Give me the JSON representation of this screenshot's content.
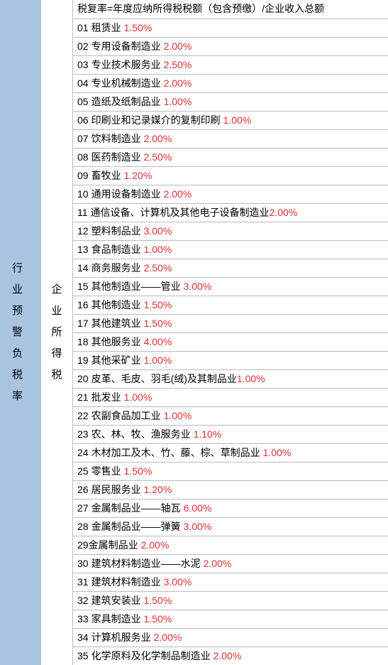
{
  "header_text": "税复率=年度应纳所得税税额（包含预缴）/企业收入总额",
  "sidebar_left": "行业预警负税率",
  "sidebar_middle": "企业所得税",
  "colors": {
    "left_bg": "#a8c4e0",
    "right_bg": "#ffffff",
    "border": "#bbbbbb",
    "text": "#000000",
    "rate": "#e03030"
  },
  "rows": [
    {
      "num": "01",
      "label": "租赁业",
      "rate": "1.50%",
      "space": true
    },
    {
      "num": "02",
      "label": "专用设备制造业",
      "rate": "2.00%",
      "space": true
    },
    {
      "num": "03",
      "label": "专业技术服务业",
      "rate": "2.50%",
      "space": true
    },
    {
      "num": "04",
      "label": "专业机械制造业",
      "rate": "2.00%",
      "space": true
    },
    {
      "num": "05",
      "label": "造纸及纸制品业",
      "rate": "1.00%",
      "space": true
    },
    {
      "num": "06",
      "label": "印刷业和记录媒介的复制印刷",
      "rate": "1.00%",
      "space": true
    },
    {
      "num": "07",
      "label": "饮料制造业",
      "rate": "2.00%",
      "space": true
    },
    {
      "num": "08",
      "label": "医药制造业",
      "rate": "2.50%",
      "space": true
    },
    {
      "num": "09",
      "label": "畜牧业",
      "rate": "1.20%",
      "space": true
    },
    {
      "num": "10",
      "label": "通用设备制造业",
      "rate": "2.00%",
      "space": true
    },
    {
      "num": "11",
      "label": "通信设备、计算机及其他电子设备制造业",
      "rate": "2.00%",
      "space": false
    },
    {
      "num": "12",
      "label": "塑料制品业",
      "rate": "3.00%",
      "space": true
    },
    {
      "num": "13",
      "label": "食品制造业",
      "rate": "1.00%",
      "space": true
    },
    {
      "num": "14",
      "label": "商务服务业",
      "rate": "2.50%",
      "space": true
    },
    {
      "num": "15",
      "label": "其他制造业——管业",
      "rate": "3.00%",
      "space": true
    },
    {
      "num": "16",
      "label": "其他制造业",
      "rate": "1.50%",
      "space": true
    },
    {
      "num": "17",
      "label": "其他建筑业",
      "rate": "1.50%",
      "space": true
    },
    {
      "num": "18",
      "label": "其他服务业",
      "rate": "4.00%",
      "space": true
    },
    {
      "num": "19",
      "label": "其他采矿业",
      "rate": "1.00%",
      "space": true
    },
    {
      "num": "20",
      "label": "皮革、毛皮、羽毛(绒)及其制品业",
      "rate": "1.00%",
      "space": false
    },
    {
      "num": "21",
      "label": "批发业",
      "rate": "1.00%",
      "space": true
    },
    {
      "num": "22",
      "label": "农副食品加工业",
      "rate": "1.00%",
      "space": true
    },
    {
      "num": "23",
      "label": "农、林、牧、渔服务业",
      "rate": "1.10%",
      "space": true
    },
    {
      "num": "24",
      "label": "木材加工及木、竹、藤、棕、草制品业",
      "rate": "1.00%",
      "space": true
    },
    {
      "num": "25",
      "label": "零售业",
      "rate": "1.50%",
      "space": true
    },
    {
      "num": "26",
      "label": "居民服务业",
      "rate": "1.20%",
      "space": true
    },
    {
      "num": "27",
      "label": "金属制品业——轴瓦",
      "rate": "6.00%",
      "space": true
    },
    {
      "num": "28",
      "label": "金属制品业——弹簧",
      "rate": "3.00%",
      "space": true
    },
    {
      "num": "29",
      "label": "金属制品业",
      "rate": "2.00%",
      "space": true,
      "alt_prefix": true
    },
    {
      "num": "30",
      "label": "建筑材料制造业——水泥",
      "rate": "2.00%",
      "space": true
    },
    {
      "num": "31",
      "label": "建筑材料制造业",
      "rate": "3.00%",
      "space": true
    },
    {
      "num": "32",
      "label": "建筑安装业",
      "rate": "1.50%",
      "space": true
    },
    {
      "num": "33",
      "label": "家具制造业",
      "rate": "1.50%",
      "space": true
    },
    {
      "num": "34",
      "label": "计算机服务业",
      "rate": "2.00%",
      "space": true
    },
    {
      "num": "35",
      "label": "化学原料及化学制品制造业",
      "rate": "2.00%",
      "space": true
    }
  ]
}
